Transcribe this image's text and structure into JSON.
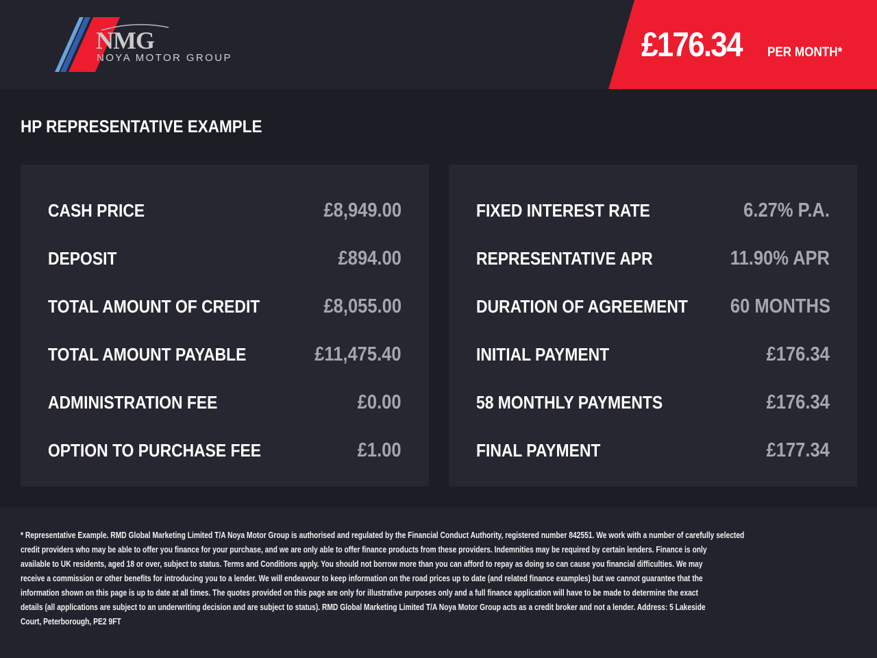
{
  "header": {
    "logo_text": "NMG",
    "logo_subtitle": "NOYA MOTOR GROUP",
    "monthly_price": "£176.34",
    "per_month_label": "PER MONTH*",
    "accent_color": "#ed1c2e"
  },
  "title": "HP REPRESENTATIVE EXAMPLE",
  "left_panel": [
    {
      "label": "CASH PRICE",
      "value": "£8,949.00"
    },
    {
      "label": "DEPOSIT",
      "value": "£894.00"
    },
    {
      "label": "TOTAL AMOUNT OF CREDIT",
      "value": "£8,055.00"
    },
    {
      "label": "TOTAL AMOUNT PAYABLE",
      "value": "£11,475.40"
    },
    {
      "label": "ADMINISTRATION FEE",
      "value": "£0.00"
    },
    {
      "label": "OPTION TO PURCHASE FEE",
      "value": "£1.00"
    }
  ],
  "right_panel": [
    {
      "label": "FIXED INTEREST RATE",
      "value": "6.27% P.A."
    },
    {
      "label": "REPRESENTATIVE APR",
      "value": "11.90% APR"
    },
    {
      "label": "DURATION OF AGREEMENT",
      "value": "60 MONTHS"
    },
    {
      "label": "INITIAL PAYMENT",
      "value": "£176.34"
    },
    {
      "label": "58 MONTHLY PAYMENTS",
      "value": "£176.34"
    },
    {
      "label": "FINAL PAYMENT",
      "value": "£177.34"
    }
  ],
  "disclaimer": [
    "* Representative Example. RMD Global Marketing Limited T/A Noya Motor Group is authorised and regulated by the Financial Conduct Authority, registered number 842551. We work with a number of carefully selected",
    "credit providers who may be able to offer you finance for your purchase, and we are only able to offer finance products from these providers. Indemnities may be required by certain lenders. Finance is only",
    "available to UK residents, aged 18 or over, subject to status. Terms and Conditions apply. You should not borrow more than you can afford to repay as doing so can cause you financial difficulties. We may",
    "receive a commission or other benefits for introducing you to a lender. We will endeavour to keep information on the road prices up to date (and related finance examples) but we cannot guarantee that the",
    "information shown on this page is up to date at all times. The quotes provided on this page are only for illustrative purposes only and a full finance application will have to be made to determine the exact",
    "details (all applications are subject to an underwriting decision and are subject to status). RMD Global Marketing Limited T/A Noya Motor Group acts as a credit broker and not a lender. Address:  5 Lakeside",
    "Court, Peterborough, PE2 9FT"
  ]
}
